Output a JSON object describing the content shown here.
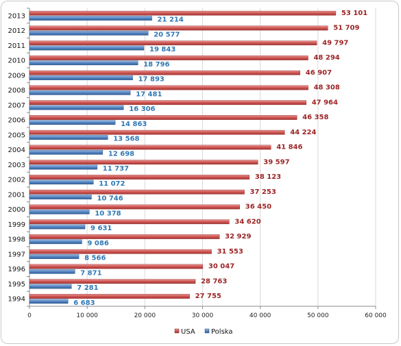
{
  "chart_data": {
    "type": "bar",
    "orientation": "horizontal",
    "categories": [
      "1994",
      "1995",
      "1996",
      "1997",
      "1998",
      "1999",
      "2000",
      "2001",
      "2002",
      "2003",
      "2004",
      "2005",
      "2006",
      "2007",
      "2008",
      "2009",
      "2010",
      "2011",
      "2012",
      "2013"
    ],
    "series": [
      {
        "name": "USA",
        "color": "#c0504d",
        "values": [
          27755,
          28763,
          30047,
          31553,
          32929,
          34620,
          36450,
          37253,
          38123,
          39597,
          41846,
          44224,
          46358,
          47964,
          48308,
          46907,
          48294,
          49797,
          51709,
          53101
        ],
        "labels": [
          "27 755",
          "28 763",
          "30 047",
          "31 553",
          "32 929",
          "34 620",
          "36 450",
          "37 253",
          "38 123",
          "39 597",
          "41 846",
          "44 224",
          "46 358",
          "47 964",
          "48 308",
          "46 907",
          "48 294",
          "49 797",
          "51 709",
          "53 101"
        ]
      },
      {
        "name": "Polska",
        "color": "#4f81bd",
        "values": [
          6683,
          7281,
          7871,
          8566,
          9086,
          9631,
          10378,
          10746,
          11072,
          11737,
          12698,
          13568,
          14863,
          16306,
          17481,
          17893,
          18796,
          19843,
          20577,
          21214
        ],
        "labels": [
          "6 683",
          "7 281",
          "7 871",
          "8 566",
          "9 086",
          "9 631",
          "10 378",
          "10 746",
          "11 072",
          "11 737",
          "12 698",
          "13 568",
          "14 863",
          "16 306",
          "17 481",
          "17 893",
          "18 796",
          "19 843",
          "20 577",
          "21 214"
        ]
      }
    ],
    "xlim": [
      0,
      60000
    ],
    "xticks": [
      0,
      10000,
      20000,
      30000,
      40000,
      50000,
      60000
    ],
    "xtick_labels": [
      "0",
      "10 000",
      "20 000",
      "30 000",
      "40 000",
      "50 000",
      "60 000"
    ],
    "title": "",
    "xlabel": "",
    "ylabel": "",
    "grid": true,
    "legend_position": "bottom"
  }
}
